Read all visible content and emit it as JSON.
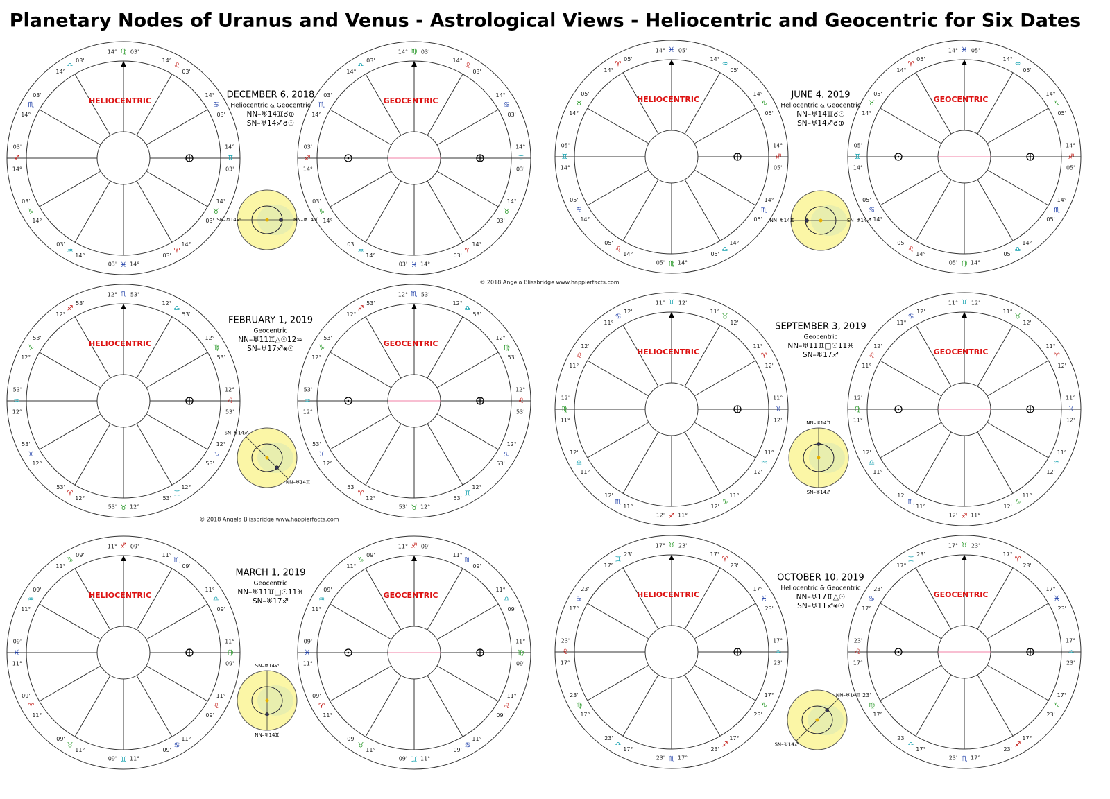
{
  "title": "Planetary Nodes of Uranus and Venus - Astrological Views - Heliocentric and Geocentric for Six Dates",
  "copyright": "© 2018 Angela Blissbridge   www.happierfacts.com",
  "panels": [
    {
      "date": "DECEMBER 6, 2018",
      "subtitle": "Heliocentric & Geocentric",
      "nn": "NN–♅14♊☌⊕",
      "sn": "SN–♅14♐☌☉",
      "helio_label": "HELIOCENTRIC",
      "geo_label": "GEOCENTRIC",
      "degree": "14°",
      "minute": "03'",
      "cusps": [
        "♍",
        "♌",
        "♋",
        "♊",
        "♉",
        "♈",
        "♓",
        "♒",
        "♑",
        "♐",
        "♏",
        "♎"
      ],
      "diagram_nn": "NN–♅14♊",
      "diagram_sn": "SN–♅14♐"
    },
    {
      "date": "JUNE 4, 2019",
      "subtitle": "Heliocentric & Geocentric",
      "nn": "NN–♅14♊☌☉",
      "sn": "SN–♅14♐☌⊕",
      "helio_label": "HELIOCENTRIC",
      "geo_label": "GEOCENTRIC",
      "degree": "14°",
      "minute": "05'",
      "cusps": [
        "♓",
        "♒",
        "♑",
        "♐",
        "♏",
        "♎",
        "♍",
        "♌",
        "♋",
        "♊",
        "♉",
        "♈"
      ],
      "diagram_nn": "NN–♅14♊",
      "diagram_sn": "SN–♅14♐"
    },
    {
      "date": "FEBRUARY 1, 2019",
      "subtitle": "Geocentric",
      "nn": "NN–♅11♊△☉12♒",
      "sn": "SN–♅17♐⚹☉",
      "helio_label": "HELIOCENTRIC",
      "geo_label": "GEOCENTRIC",
      "degree": "12°",
      "minute": "53'",
      "cusps": [
        "♏",
        "♎",
        "♍",
        "♌",
        "♋",
        "♊",
        "♉",
        "♈",
        "♓",
        "♒",
        "♑",
        "♐"
      ],
      "diagram_nn": "NN–♅14♊",
      "diagram_sn": "SN–♅14♐"
    },
    {
      "date": "SEPTEMBER 3, 2019",
      "subtitle": "Geocentric",
      "nn": "NN–♅11♊□☉11♓",
      "sn": "SN–♅17♐",
      "helio_label": "HELIOCENTRIC",
      "geo_label": "GEOCENTRIC",
      "degree": "11°",
      "minute": "12'",
      "cusps": [
        "♊",
        "♉",
        "♈",
        "♓",
        "♒",
        "♑",
        "♐",
        "♏",
        "♎",
        "♍",
        "♌",
        "♋"
      ],
      "diagram_nn": "NN–♅14♊",
      "diagram_sn": "SN–♅14♐"
    },
    {
      "date": "MARCH 1, 2019",
      "subtitle": "Geocentric",
      "nn": "NN–♅11♊□☉11♓",
      "sn": "SN–♅17♐",
      "helio_label": "HELIOCENTRIC",
      "geo_label": "GEOCENTRIC",
      "degree": "11°",
      "minute": "09'",
      "cusps": [
        "♐",
        "♏",
        "♎",
        "♍",
        "♌",
        "♋",
        "♊",
        "♉",
        "♈",
        "♓",
        "♒",
        "♑"
      ],
      "diagram_nn": "NN–♅14♊",
      "diagram_sn": "SN–♅14♐"
    },
    {
      "date": "OCTOBER 10, 2019",
      "subtitle": "Heliocentric & Geocentric",
      "nn": "NN–♅17♊△☉",
      "sn": "SN–♅11♐⚹☉",
      "helio_label": "HELIOCENTRIC",
      "geo_label": "GEOCENTRIC",
      "degree": "17°",
      "minute": "23'",
      "cusps": [
        "♉",
        "♈",
        "♓",
        "♒",
        "♑",
        "♐",
        "♏",
        "♎",
        "♍",
        "♌",
        "♋",
        "♊"
      ],
      "diagram_nn": "NN–♅14♊",
      "diagram_sn": "SN–♅14♐"
    }
  ]
}
